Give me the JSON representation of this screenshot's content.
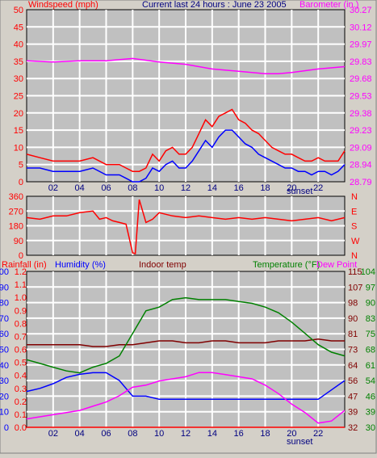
{
  "header": {
    "left_label": "Windspeed (mph)",
    "center_label": "Current last 24 hours : June 23 2005",
    "right_label": "Barometer (in.)"
  },
  "bottom_header": {
    "rainfall": "Rainfall (in)",
    "humidity": "Humidity (%)",
    "indoor": "Indoor temp",
    "temperature": "Temperature (°F)",
    "dew": "Dew Point"
  },
  "colors": {
    "background": "#d4d0c8",
    "plot": "#c0c0c0",
    "grid": "#ffffff",
    "red": "#ff0000",
    "blue": "#0000ff",
    "magenta": "#ff00ff",
    "maroon": "#800000",
    "green": "#008000",
    "darkred": "#c00000",
    "navy": "#000080"
  },
  "x_axis": {
    "ticks": [
      "02",
      "04",
      "06",
      "08",
      "10",
      "12",
      "14",
      "16",
      "18",
      "20",
      "22"
    ],
    "sunset_label": "sunset",
    "sunset_hour": 19.5
  },
  "chart_data": [
    {
      "type": "line",
      "title": "Current last 24 hours : June 23 2005",
      "x_unit": "hour",
      "x_range": [
        0,
        24
      ],
      "left_axis": {
        "label": "Windspeed (mph)",
        "ticks": [
          0,
          5,
          10,
          15,
          20,
          25,
          30,
          35,
          40,
          45,
          50
        ],
        "range": [
          0,
          50
        ]
      },
      "right_axis": {
        "label": "Barometer (in.)",
        "ticks": [
          "28.79",
          "28.94",
          "29.09",
          "29.23",
          "29.38",
          "29.53",
          "29.68",
          "29.83",
          "29.97",
          "30.12",
          "30.27"
        ],
        "range": [
          28.79,
          30.27
        ]
      },
      "series": [
        {
          "color": "#ff0000",
          "x": [
            0,
            1,
            2,
            3,
            4,
            5,
            6,
            7,
            7.5,
            8,
            8.5,
            9,
            9.5,
            10,
            10.5,
            11,
            11.5,
            12,
            12.5,
            13,
            13.5,
            14,
            14.5,
            15,
            15.5,
            16,
            16.5,
            17,
            17.5,
            18,
            18.5,
            19,
            19.5,
            20,
            20.5,
            21,
            21.5,
            22,
            22.5,
            23,
            23.5,
            24
          ],
          "y": [
            8,
            7,
            6,
            6,
            6,
            7,
            5,
            5,
            4,
            3,
            3,
            4,
            8,
            6,
            9,
            10,
            8,
            8,
            10,
            14,
            18,
            16,
            19,
            20,
            21,
            18,
            17,
            15,
            14,
            12,
            10,
            9,
            8,
            8,
            7,
            6,
            6,
            7,
            6,
            6,
            6,
            9
          ]
        },
        {
          "color": "#0000ff",
          "x": [
            0,
            1,
            2,
            3,
            4,
            5,
            6,
            7,
            7.5,
            8,
            8.5,
            9,
            9.5,
            10,
            10.5,
            11,
            11.5,
            12,
            12.5,
            13,
            13.5,
            14,
            14.5,
            15,
            15.5,
            16,
            16.5,
            17,
            17.5,
            18,
            18.5,
            19,
            19.5,
            20,
            20.5,
            21,
            21.5,
            22,
            22.5,
            23,
            23.5,
            24
          ],
          "y": [
            4,
            4,
            3,
            3,
            3,
            4,
            2,
            2,
            1,
            0,
            0,
            1,
            4,
            3,
            5,
            6,
            4,
            4,
            6,
            9,
            12,
            10,
            13,
            15,
            15,
            13,
            11,
            10,
            8,
            7,
            6,
            5,
            4,
            4,
            3,
            3,
            2,
            3,
            3,
            2,
            3,
            5
          ]
        },
        {
          "color": "#ff00ff",
          "axis": "right",
          "x": [
            0,
            2,
            4,
            6,
            8,
            10,
            12,
            14,
            16,
            18,
            19,
            20,
            22,
            24
          ],
          "y": [
            29.83,
            29.82,
            29.83,
            29.83,
            29.85,
            29.82,
            29.8,
            29.76,
            29.74,
            29.72,
            29.72,
            29.73,
            29.76,
            29.78
          ]
        }
      ]
    },
    {
      "type": "scatter",
      "x_unit": "hour",
      "x_range": [
        0,
        24
      ],
      "left_axis": {
        "ticks": [
          0,
          90,
          180,
          270,
          360
        ],
        "range": [
          0,
          360
        ]
      },
      "right_axis": {
        "ticks": [
          "N",
          "E",
          "S",
          "W",
          "N"
        ]
      },
      "series": [
        {
          "color": "#ff0000",
          "x": [
            0,
            1,
            2,
            3,
            4,
            5,
            5.5,
            6,
            6.5,
            7,
            7.5,
            8,
            8.2,
            8.5,
            9,
            9.5,
            10,
            11,
            12,
            13,
            14,
            15,
            16,
            17,
            18,
            19,
            20,
            21,
            22,
            23,
            24
          ],
          "y": [
            230,
            220,
            240,
            240,
            260,
            270,
            220,
            230,
            210,
            200,
            190,
            15,
            10,
            340,
            200,
            220,
            260,
            240,
            230,
            240,
            230,
            220,
            230,
            220,
            230,
            220,
            210,
            220,
            230,
            210,
            230
          ]
        }
      ]
    },
    {
      "type": "line",
      "x_unit": "hour",
      "x_range": [
        0,
        24
      ],
      "left_axes": [
        {
          "label": "Rainfall (in)",
          "ticks": [
            "0.0",
            "0.1",
            "0.2",
            "0.3",
            "0.4",
            "0.5",
            "0.6",
            "0.7",
            "0.8",
            "0.9",
            "1.0",
            "1.1",
            "1.2"
          ],
          "range": [
            0,
            1.2
          ]
        },
        {
          "label": "Humidity (%)",
          "ticks": [
            0,
            10,
            20,
            30,
            40,
            50,
            60,
            70,
            80,
            90,
            100
          ],
          "range": [
            0,
            100
          ]
        }
      ],
      "right_axes": [
        {
          "label": "Temperature (°F)",
          "ticks": [
            32,
            39,
            47,
            56,
            64,
            73,
            81,
            90,
            98,
            107,
            115
          ],
          "range": [
            32,
            115
          ]
        },
        {
          "label": "Dew Point",
          "ticks": [
            30,
            39,
            46,
            54,
            61,
            68,
            75,
            83,
            90,
            97,
            104
          ],
          "range": [
            30,
            104
          ]
        }
      ],
      "series": [
        {
          "color": "#ff0000",
          "x": [
            0,
            24
          ],
          "y": [
            0,
            0
          ]
        },
        {
          "color": "#0000ff",
          "x": [
            0,
            1,
            2,
            3,
            4,
            5,
            6,
            7,
            7.5,
            8,
            9,
            10,
            11,
            12,
            14,
            16,
            18,
            20,
            21,
            22,
            23,
            24
          ],
          "y": [
            23,
            25,
            28,
            32,
            34,
            35,
            35,
            30,
            25,
            20,
            20,
            18,
            18,
            18,
            18,
            18,
            18,
            18,
            18,
            18,
            24,
            30
          ]
        },
        {
          "color": "#800000",
          "x": [
            0,
            1,
            2,
            3,
            4,
            5,
            6,
            7,
            8,
            9,
            10,
            11,
            12,
            13,
            14,
            15,
            16,
            17,
            18,
            19,
            20,
            21,
            22,
            23,
            24
          ],
          "y": [
            76,
            76,
            76,
            76,
            76,
            75,
            75,
            76,
            76,
            77,
            78,
            78,
            77,
            77,
            78,
            78,
            77,
            77,
            77,
            78,
            78,
            78,
            79,
            78,
            78
          ]
        },
        {
          "color": "#008000",
          "x": [
            0,
            1,
            2,
            3,
            4,
            5,
            6,
            7,
            8,
            9,
            10,
            11,
            12,
            13,
            14,
            15,
            16,
            17,
            18,
            19,
            20,
            21,
            22,
            23,
            24
          ],
          "y": [
            68,
            66,
            64,
            62,
            61,
            64,
            66,
            70,
            82,
            94,
            96,
            100,
            101,
            100,
            100,
            100,
            99,
            98,
            96,
            93,
            88,
            82,
            76,
            72,
            70
          ]
        },
        {
          "color": "#ff00ff",
          "x": [
            0,
            1,
            2,
            3,
            4,
            5,
            6,
            7,
            8,
            9,
            10,
            11,
            12,
            13,
            14,
            15,
            16,
            17,
            18,
            19,
            20,
            21,
            22,
            23,
            24
          ],
          "y": [
            34,
            35,
            36,
            37,
            38,
            40,
            42,
            45,
            49,
            50,
            52,
            53,
            54,
            56,
            56,
            55,
            54,
            53,
            50,
            46,
            41,
            37,
            32,
            33,
            38
          ]
        }
      ]
    }
  ]
}
